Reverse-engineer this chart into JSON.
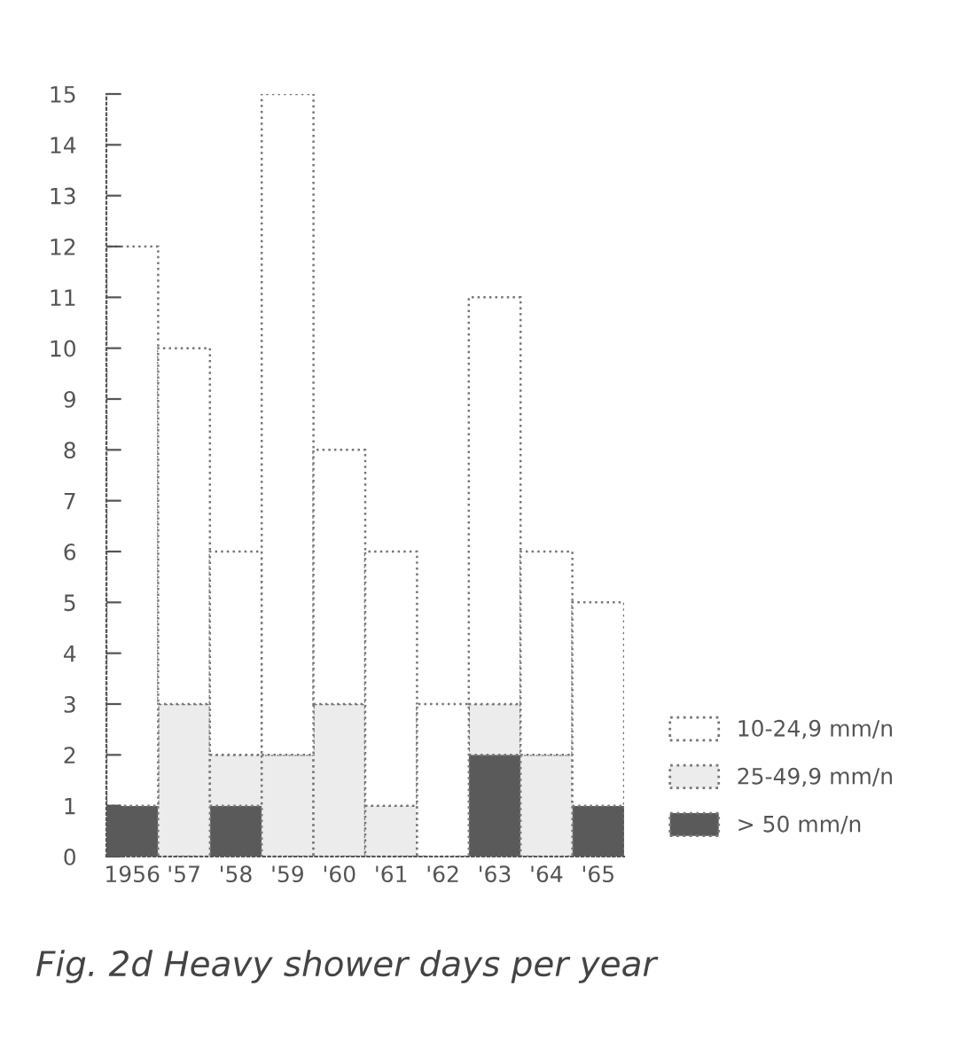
{
  "chart_data": {
    "type": "bar",
    "stacked": true,
    "title": "Fig. 2d Heavy shower days per year",
    "categories": [
      "1956",
      "'57",
      "'58",
      "'59",
      "'60",
      "'61",
      "'62",
      "'63",
      "'64",
      "'65"
    ],
    "series": [
      {
        "name": "> 50 mm/n",
        "color": "#5a5a5a",
        "values": [
          1,
          0,
          1,
          0,
          0,
          0,
          0,
          2,
          0,
          1
        ]
      },
      {
        "name": "25-49,9 mm/n",
        "color": "#ececec",
        "values": [
          0,
          3,
          1,
          2,
          3,
          1,
          0,
          1,
          2,
          0
        ]
      },
      {
        "name": "10-24,9 mm/n",
        "color": "#ffffff",
        "values": [
          11,
          7,
          4,
          13,
          5,
          5,
          3,
          8,
          4,
          4
        ]
      }
    ],
    "ylim": [
      0,
      15
    ],
    "yticks": [
      0,
      1,
      2,
      3,
      4,
      5,
      6,
      7,
      8,
      9,
      10,
      11,
      12,
      13,
      14,
      15
    ],
    "grid": false,
    "legend": "right"
  }
}
